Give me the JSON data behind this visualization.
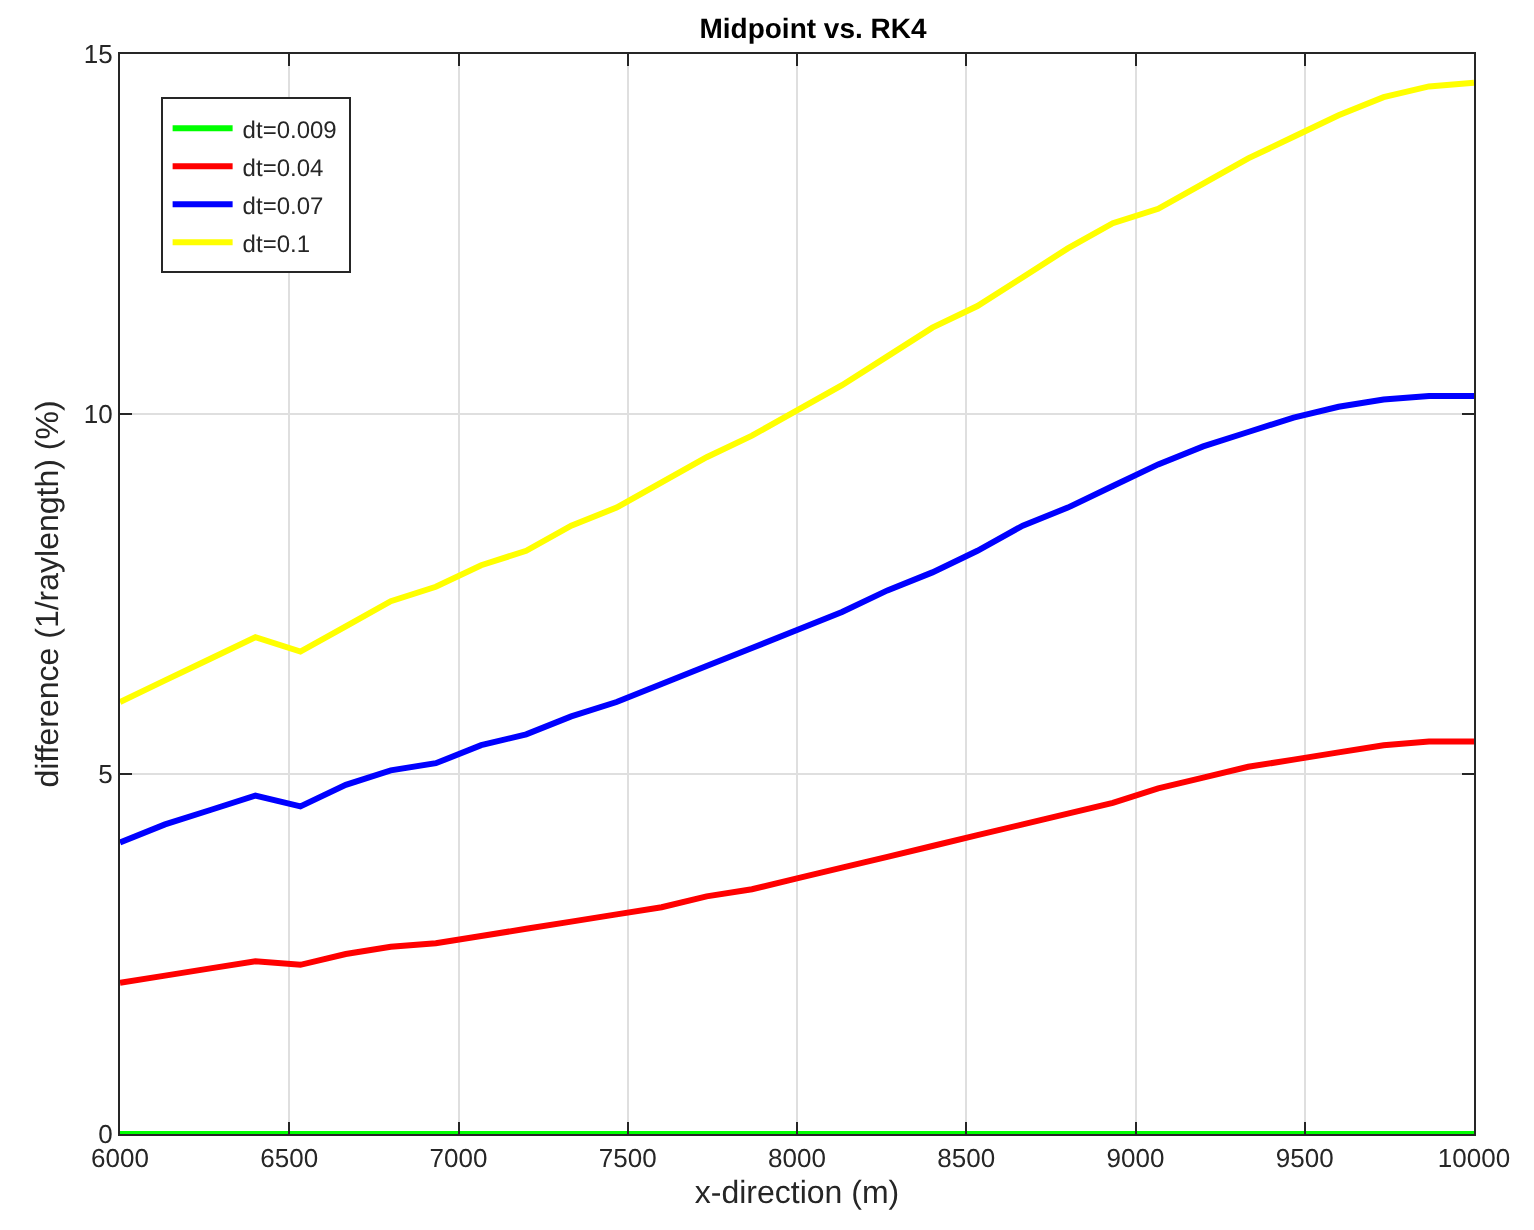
{
  "chart_data": {
    "type": "line",
    "title": "Midpoint vs. RK4",
    "xlabel": "x-direction (m)",
    "ylabel": "difference (1/raylength) (%)",
    "x": [
      6000,
      6133,
      6267,
      6400,
      6533,
      6667,
      6800,
      6933,
      7067,
      7200,
      7333,
      7467,
      7600,
      7733,
      7867,
      8000,
      8133,
      8267,
      8400,
      8533,
      8667,
      8800,
      8933,
      9067,
      9200,
      9333,
      9467,
      9600,
      9733,
      9867,
      10000
    ],
    "series": [
      {
        "name": "dt=0.009",
        "color": "#00ff00",
        "values": [
          0,
          0,
          0,
          0,
          0,
          0,
          0,
          0,
          0,
          0,
          0,
          0,
          0,
          0,
          0,
          0,
          0,
          0,
          0,
          0,
          0,
          0,
          0,
          0,
          0,
          0,
          0,
          0,
          0,
          0,
          0
        ]
      },
      {
        "name": "dt=0.04",
        "color": "#ff0000",
        "values": [
          2.1,
          2.2,
          2.3,
          2.4,
          2.35,
          2.5,
          2.6,
          2.65,
          2.75,
          2.85,
          2.95,
          3.05,
          3.15,
          3.3,
          3.4,
          3.55,
          3.7,
          3.85,
          4.0,
          4.15,
          4.3,
          4.45,
          4.6,
          4.8,
          4.95,
          5.1,
          5.2,
          5.3,
          5.4,
          5.45,
          5.45
        ]
      },
      {
        "name": "dt=0.07",
        "color": "#0000ff",
        "values": [
          4.05,
          4.3,
          4.5,
          4.7,
          4.55,
          4.85,
          5.05,
          5.15,
          5.4,
          5.55,
          5.8,
          6.0,
          6.25,
          6.5,
          6.75,
          7.0,
          7.25,
          7.55,
          7.8,
          8.1,
          8.45,
          8.7,
          9.0,
          9.3,
          9.55,
          9.75,
          9.95,
          10.1,
          10.2,
          10.25,
          10.25
        ]
      },
      {
        "name": "dt=0.1",
        "color": "#ffff00",
        "values": [
          6.0,
          6.3,
          6.6,
          6.9,
          6.7,
          7.05,
          7.4,
          7.6,
          7.9,
          8.1,
          8.45,
          8.7,
          9.05,
          9.4,
          9.7,
          10.05,
          10.4,
          10.8,
          11.2,
          11.5,
          11.9,
          12.3,
          12.65,
          12.85,
          13.2,
          13.55,
          13.85,
          14.15,
          14.4,
          14.55,
          14.6
        ]
      }
    ],
    "xlim": [
      6000,
      10000
    ],
    "xticks": [
      6000,
      6500,
      7000,
      7500,
      8000,
      8500,
      9000,
      9500,
      10000
    ],
    "ylim": [
      0,
      15
    ],
    "yticks": [
      0,
      5,
      10,
      15
    ],
    "grid": true,
    "legend": "top left",
    "marker": "none",
    "line_style": "solid"
  }
}
